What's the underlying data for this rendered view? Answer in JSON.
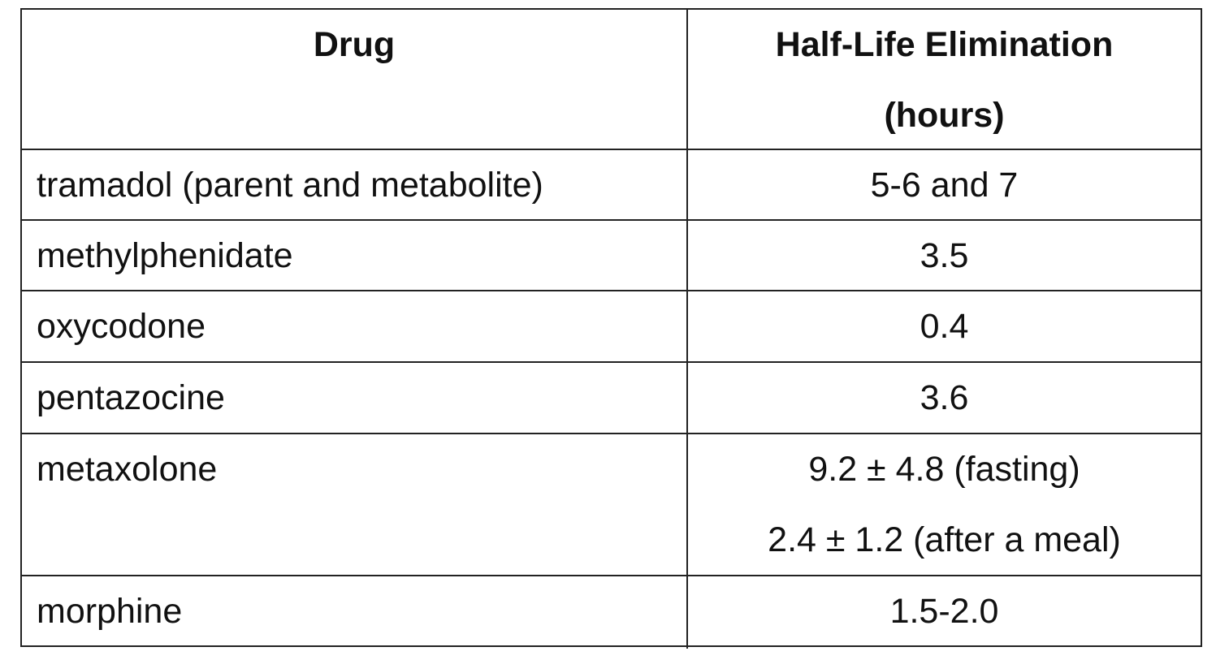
{
  "table": {
    "header": {
      "drug": "Drug",
      "half_life": [
        "Half-Life Elimination",
        "(hours)"
      ]
    },
    "rows": [
      {
        "drug": "tramadol (parent and metabolite)",
        "half_life": [
          "5-6 and 7"
        ]
      },
      {
        "drug": "methylphenidate",
        "half_life": [
          "3.5"
        ]
      },
      {
        "drug": "oxycodone",
        "half_life": [
          "0.4"
        ]
      },
      {
        "drug": "pentazocine",
        "half_life": [
          "3.6"
        ]
      },
      {
        "drug": "metaxolone",
        "half_life": [
          "9.2 ± 4.8 (fasting)",
          "2.4 ± 1.2 (after a meal)"
        ]
      },
      {
        "drug": "morphine",
        "half_life": [
          "1.5-2.0"
        ]
      }
    ]
  }
}
